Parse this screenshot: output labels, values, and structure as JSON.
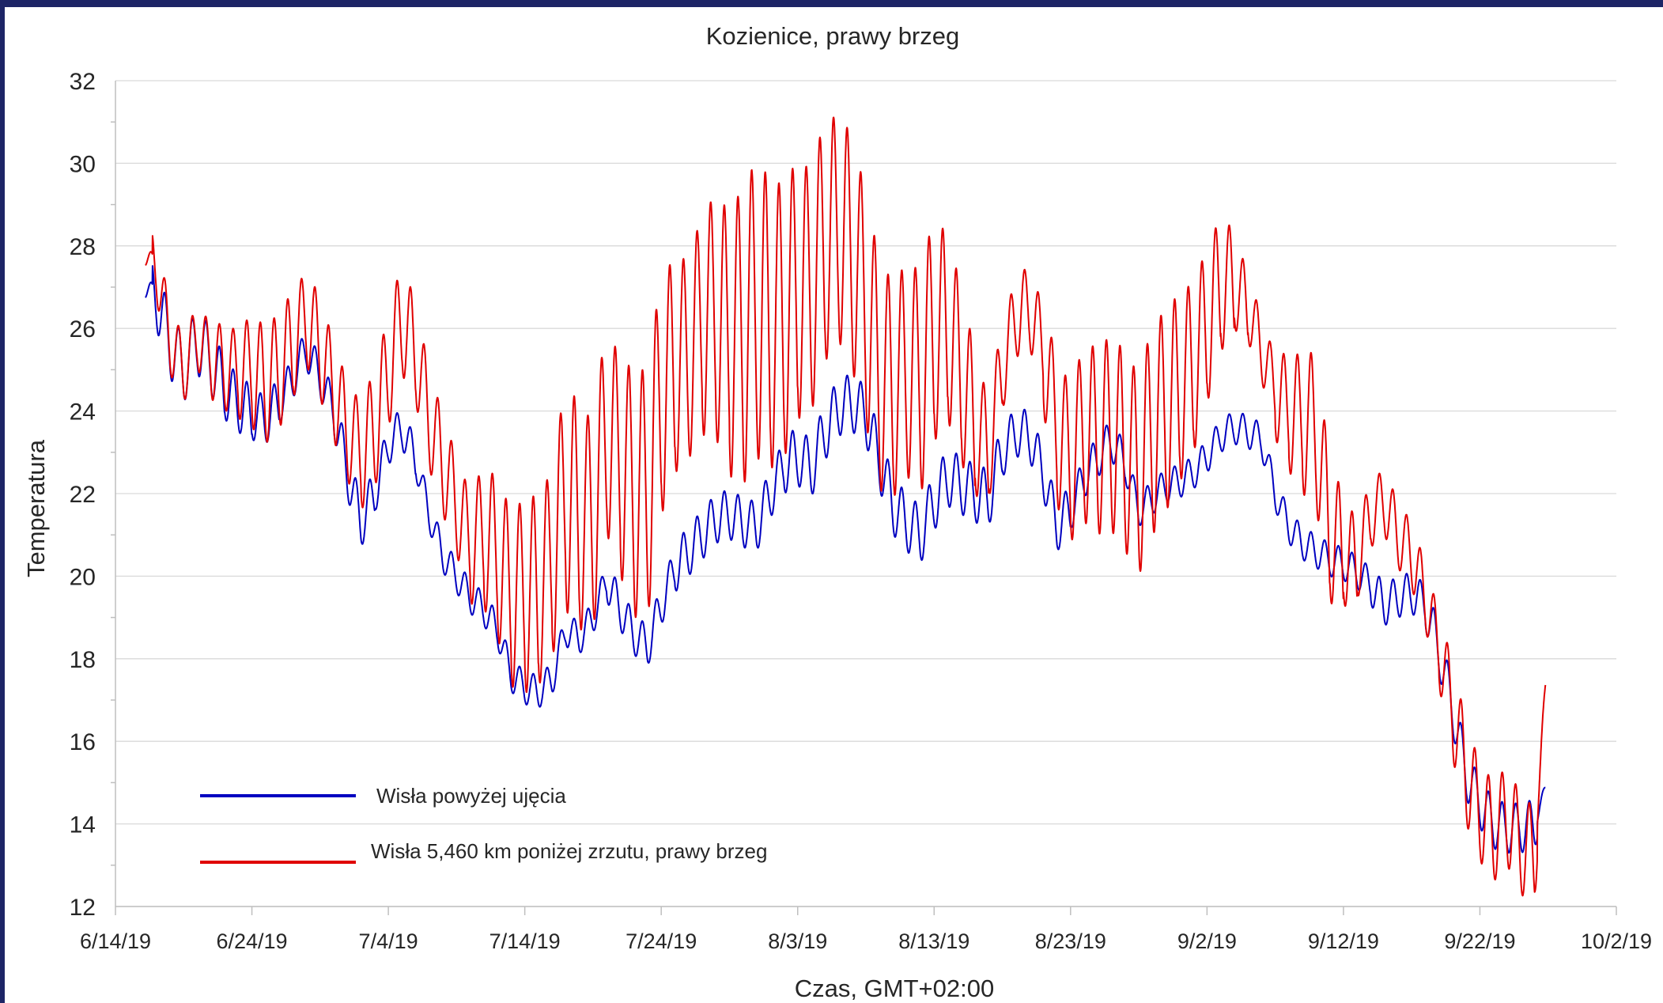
{
  "chart_data": {
    "type": "line",
    "title": "Kozienice, prawy  brzeg",
    "xlabel": "Czas, GMT+02:00",
    "ylabel": "Temperatura",
    "x_axis_type": "date",
    "xlim": [
      "2019-06-14",
      "2019-10-02"
    ],
    "x_tick_labels": [
      "6/14/19",
      "6/24/19",
      "7/4/19",
      "7/14/19",
      "7/24/19",
      "8/3/19",
      "8/13/19",
      "8/23/19",
      "9/2/19",
      "9/12/19",
      "9/22/19",
      "10/2/19"
    ],
    "ylim": [
      12,
      32
    ],
    "y_ticks": [
      12,
      14,
      16,
      18,
      20,
      22,
      24,
      26,
      28,
      30,
      32
    ],
    "grid": "horizontal",
    "legend_position": "bottom-left",
    "series": [
      {
        "name": "Wisła powyżej ujęcia",
        "color": "#0000c0",
        "diurnal_amplitude": [
          0.8,
          0.8,
          0.8,
          0.8,
          0.8,
          0.8,
          0.8,
          0.8,
          0.7,
          0.7,
          0.6,
          0.6,
          0.5,
          0.5,
          0.5,
          0.5,
          0.6,
          0.6,
          0.6,
          0.5,
          0.5,
          0.5,
          0.4,
          0.4,
          0.4,
          0.4,
          0.4,
          0.4,
          0.4,
          0.4,
          0.4,
          0.4,
          0.4,
          0.4,
          0.4,
          0.4,
          0.5,
          0.5,
          0.5,
          0.5,
          0.5,
          0.6,
          0.6,
          0.6,
          0.6,
          0.6,
          0.6,
          0.6,
          0.6,
          0.7,
          0.7,
          0.7,
          0.7,
          0.7,
          0.7,
          0.7,
          0.7,
          0.7,
          0.7,
          0.7,
          0.7,
          0.7,
          0.7,
          0.7,
          0.7,
          0.6,
          0.6,
          0.6,
          0.6,
          0.6,
          0.5,
          0.5,
          0.5,
          0.5,
          0.4,
          0.4,
          0.4,
          0.4,
          0.4,
          0.4,
          0.4,
          0.4,
          0.4,
          0.4,
          0.4,
          0.4,
          0.4,
          0.4,
          0.4,
          0.4,
          0.4,
          0.4,
          0.5,
          0.5,
          0.5,
          0.5,
          0.6,
          0.6,
          0.6,
          0.6
        ],
        "points": [
          [
            "2019-06-16",
            28.7
          ],
          [
            "2019-06-16",
            27.0
          ],
          [
            "2019-06-17",
            26.8
          ],
          [
            "2019-06-18",
            25.6
          ],
          [
            "2019-06-19",
            25.0
          ],
          [
            "2019-06-20",
            25.7
          ],
          [
            "2019-06-21",
            25.2
          ],
          [
            "2019-06-22",
            24.5
          ],
          [
            "2019-06-23",
            24.2
          ],
          [
            "2019-06-24",
            23.9
          ],
          [
            "2019-06-25",
            23.8
          ],
          [
            "2019-06-26",
            24.2
          ],
          [
            "2019-06-27",
            24.8
          ],
          [
            "2019-06-28",
            25.5
          ],
          [
            "2019-06-29",
            24.8
          ],
          [
            "2019-06-30",
            24.0
          ],
          [
            "2019-07-01",
            22.5
          ],
          [
            "2019-07-02",
            21.3
          ],
          [
            "2019-07-03",
            22.0
          ],
          [
            "2019-07-04",
            23.2
          ],
          [
            "2019-07-05",
            23.6
          ],
          [
            "2019-07-06",
            22.8
          ],
          [
            "2019-07-07",
            21.5
          ],
          [
            "2019-07-08",
            20.5
          ],
          [
            "2019-07-09",
            20.0
          ],
          [
            "2019-07-10",
            19.5
          ],
          [
            "2019-07-11",
            19.2
          ],
          [
            "2019-07-12",
            18.7
          ],
          [
            "2019-07-13",
            17.6
          ],
          [
            "2019-07-14",
            17.3
          ],
          [
            "2019-07-15",
            17.2
          ],
          [
            "2019-07-16",
            17.5
          ],
          [
            "2019-07-17",
            18.7
          ],
          [
            "2019-07-18",
            18.5
          ],
          [
            "2019-07-19",
            19.0
          ],
          [
            "2019-07-20",
            19.9
          ],
          [
            "2019-07-21",
            19.2
          ],
          [
            "2019-07-22",
            18.6
          ],
          [
            "2019-07-23",
            18.3
          ],
          [
            "2019-07-24",
            19.3
          ],
          [
            "2019-07-25",
            20.2
          ],
          [
            "2019-07-26",
            20.6
          ],
          [
            "2019-07-27",
            21.0
          ],
          [
            "2019-07-28",
            21.4
          ],
          [
            "2019-07-29",
            21.5
          ],
          [
            "2019-07-30",
            21.3
          ],
          [
            "2019-07-31",
            21.2
          ],
          [
            "2019-08-01",
            22.0
          ],
          [
            "2019-08-02",
            22.7
          ],
          [
            "2019-08-03",
            22.9
          ],
          [
            "2019-08-04",
            22.6
          ],
          [
            "2019-08-05",
            23.5
          ],
          [
            "2019-08-06",
            24.1
          ],
          [
            "2019-08-07",
            24.2
          ],
          [
            "2019-08-08",
            23.9
          ],
          [
            "2019-08-09",
            22.8
          ],
          [
            "2019-08-10",
            21.7
          ],
          [
            "2019-08-11",
            21.3
          ],
          [
            "2019-08-12",
            21.0
          ],
          [
            "2019-08-13",
            21.8
          ],
          [
            "2019-08-14",
            22.4
          ],
          [
            "2019-08-15",
            22.2
          ],
          [
            "2019-08-16",
            22.0
          ],
          [
            "2019-08-17",
            21.9
          ],
          [
            "2019-08-18",
            23.0
          ],
          [
            "2019-08-19",
            23.5
          ],
          [
            "2019-08-20",
            23.4
          ],
          [
            "2019-08-21",
            22.5
          ],
          [
            "2019-08-22",
            21.2
          ],
          [
            "2019-08-23",
            21.6
          ],
          [
            "2019-08-24",
            22.4
          ],
          [
            "2019-08-25",
            22.9
          ],
          [
            "2019-08-26",
            23.3
          ],
          [
            "2019-08-27",
            22.7
          ],
          [
            "2019-08-28",
            21.6
          ],
          [
            "2019-08-29",
            21.9
          ],
          [
            "2019-08-30",
            22.2
          ],
          [
            "2019-08-31",
            22.3
          ],
          [
            "2019-09-01",
            22.5
          ],
          [
            "2019-09-02",
            22.9
          ],
          [
            "2019-09-03",
            23.4
          ],
          [
            "2019-09-04",
            23.6
          ],
          [
            "2019-09-05",
            23.5
          ],
          [
            "2019-09-06",
            23.3
          ],
          [
            "2019-09-07",
            22.0
          ],
          [
            "2019-09-08",
            21.2
          ],
          [
            "2019-09-09",
            20.8
          ],
          [
            "2019-09-10",
            20.6
          ],
          [
            "2019-09-11",
            20.4
          ],
          [
            "2019-09-12",
            20.3
          ],
          [
            "2019-09-13",
            20.1
          ],
          [
            "2019-09-14",
            19.8
          ],
          [
            "2019-09-15",
            19.3
          ],
          [
            "2019-09-16",
            19.5
          ],
          [
            "2019-09-17",
            19.6
          ],
          [
            "2019-09-18",
            19.3
          ],
          [
            "2019-09-19",
            18.2
          ],
          [
            "2019-09-20",
            16.8
          ],
          [
            "2019-09-21",
            15.2
          ],
          [
            "2019-09-22",
            14.5
          ],
          [
            "2019-09-23",
            14.0
          ],
          [
            "2019-09-24",
            13.9
          ],
          [
            "2019-09-25",
            13.9
          ],
          [
            "2019-09-26",
            14.0
          ],
          [
            "2019-09-26",
            14.8
          ]
        ]
      },
      {
        "name": "Wisła 5,460 km poniżej zrzutu, prawy  brzeg",
        "color": "#e00000",
        "diurnal_amplitude": [
          0.8,
          0.8,
          0.8,
          0.8,
          0.8,
          0.8,
          0.8,
          1.0,
          1.0,
          1.2,
          1.4,
          1.4,
          1.4,
          1.2,
          1.2,
          1.2,
          1.2,
          1.2,
          1.4,
          1.4,
          1.4,
          1.3,
          1.2,
          1.2,
          1.2,
          1.2,
          1.5,
          1.8,
          2.0,
          2.2,
          2.4,
          2.2,
          2.5,
          2.8,
          2.6,
          2.6,
          2.5,
          2.8,
          3.0,
          3.0,
          2.8,
          2.5,
          2.5,
          2.8,
          3.0,
          3.4,
          3.6,
          3.6,
          3.4,
          3.3,
          3.0,
          3.0,
          2.8,
          2.8,
          2.8,
          2.8,
          2.7,
          2.6,
          2.6,
          2.8,
          2.5,
          2.2,
          2.0,
          1.5,
          1.2,
          1.0,
          1.0,
          1.0,
          1.5,
          1.8,
          2.0,
          2.2,
          2.3,
          2.4,
          2.4,
          2.5,
          2.5,
          2.4,
          2.2,
          2.0,
          1.8,
          1.5,
          1.0,
          0.8,
          0.8,
          1.2,
          1.5,
          1.8,
          1.8,
          1.6,
          1.2,
          0.9,
          0.8,
          0.8,
          0.8,
          0.8,
          0.8,
          1.0,
          1.2,
          1.2
        ],
        "points": [
          [
            "2019-06-16",
            28.7
          ],
          [
            "2019-06-16",
            27.8
          ],
          [
            "2019-06-17",
            27.5
          ],
          [
            "2019-06-18",
            25.7
          ],
          [
            "2019-06-19",
            25.0
          ],
          [
            "2019-06-20",
            25.8
          ],
          [
            "2019-06-21",
            25.3
          ],
          [
            "2019-06-22",
            25.0
          ],
          [
            "2019-06-23",
            25.0
          ],
          [
            "2019-06-24",
            25.0
          ],
          [
            "2019-06-25",
            24.6
          ],
          [
            "2019-06-26",
            25.0
          ],
          [
            "2019-06-27",
            25.5
          ],
          [
            "2019-06-28",
            26.3
          ],
          [
            "2019-06-29",
            25.5
          ],
          [
            "2019-06-30",
            24.5
          ],
          [
            "2019-07-01",
            23.5
          ],
          [
            "2019-07-02",
            23.0
          ],
          [
            "2019-07-03",
            23.5
          ],
          [
            "2019-07-04",
            25.0
          ],
          [
            "2019-07-05",
            26.2
          ],
          [
            "2019-07-06",
            25.4
          ],
          [
            "2019-07-07",
            23.8
          ],
          [
            "2019-07-08",
            22.7
          ],
          [
            "2019-07-09",
            21.7
          ],
          [
            "2019-07-10",
            20.8
          ],
          [
            "2019-07-11",
            21.0
          ],
          [
            "2019-07-12",
            20.5
          ],
          [
            "2019-07-13",
            19.5
          ],
          [
            "2019-07-14",
            19.6
          ],
          [
            "2019-07-15",
            19.5
          ],
          [
            "2019-07-16",
            20.5
          ],
          [
            "2019-07-17",
            22.0
          ],
          [
            "2019-07-18",
            21.3
          ],
          [
            "2019-07-19",
            21.3
          ],
          [
            "2019-07-20",
            23.5
          ],
          [
            "2019-07-21",
            22.8
          ],
          [
            "2019-07-22",
            22.0
          ],
          [
            "2019-07-23",
            22.0
          ],
          [
            "2019-07-24",
            24.3
          ],
          [
            "2019-07-25",
            25.0
          ],
          [
            "2019-07-26",
            25.3
          ],
          [
            "2019-07-27",
            26.2
          ],
          [
            "2019-07-28",
            26.3
          ],
          [
            "2019-07-29",
            25.8
          ],
          [
            "2019-07-30",
            25.8
          ],
          [
            "2019-07-31",
            26.5
          ],
          [
            "2019-08-01",
            26.0
          ],
          [
            "2019-08-02",
            26.2
          ],
          [
            "2019-08-03",
            26.8
          ],
          [
            "2019-08-04",
            27.0
          ],
          [
            "2019-08-05",
            28.0
          ],
          [
            "2019-08-06",
            28.5
          ],
          [
            "2019-08-07",
            27.8
          ],
          [
            "2019-08-08",
            26.5
          ],
          [
            "2019-08-09",
            24.8
          ],
          [
            "2019-08-10",
            24.5
          ],
          [
            "2019-08-11",
            25.0
          ],
          [
            "2019-08-12",
            24.8
          ],
          [
            "2019-08-13",
            25.8
          ],
          [
            "2019-08-14",
            26.0
          ],
          [
            "2019-08-15",
            24.8
          ],
          [
            "2019-08-16",
            23.5
          ],
          [
            "2019-08-17",
            23.0
          ],
          [
            "2019-08-18",
            25.0
          ],
          [
            "2019-08-19",
            26.3
          ],
          [
            "2019-08-20",
            26.5
          ],
          [
            "2019-08-21",
            25.5
          ],
          [
            "2019-08-22",
            23.5
          ],
          [
            "2019-08-23",
            22.8
          ],
          [
            "2019-08-24",
            23.5
          ],
          [
            "2019-08-25",
            23.3
          ],
          [
            "2019-08-26",
            23.5
          ],
          [
            "2019-08-27",
            23.0
          ],
          [
            "2019-08-28",
            22.5
          ],
          [
            "2019-08-29",
            23.5
          ],
          [
            "2019-08-30",
            24.0
          ],
          [
            "2019-08-31",
            24.5
          ],
          [
            "2019-09-01",
            25.0
          ],
          [
            "2019-09-02",
            26.0
          ],
          [
            "2019-09-03",
            27.0
          ],
          [
            "2019-09-04",
            27.0
          ],
          [
            "2019-09-05",
            26.5
          ],
          [
            "2019-09-06",
            25.5
          ],
          [
            "2019-09-07",
            24.5
          ],
          [
            "2019-09-08",
            24.0
          ],
          [
            "2019-09-09",
            23.8
          ],
          [
            "2019-09-10",
            23.5
          ],
          [
            "2019-09-11",
            21.0
          ],
          [
            "2019-09-12",
            20.5
          ],
          [
            "2019-09-13",
            20.3
          ],
          [
            "2019-09-14",
            21.5
          ],
          [
            "2019-09-15",
            21.8
          ],
          [
            "2019-09-16",
            21.0
          ],
          [
            "2019-09-17",
            20.5
          ],
          [
            "2019-09-18",
            19.5
          ],
          [
            "2019-09-19",
            18.3
          ],
          [
            "2019-09-20",
            16.8
          ],
          [
            "2019-09-21",
            15.2
          ],
          [
            "2019-09-22",
            14.3
          ],
          [
            "2019-09-23",
            13.8
          ],
          [
            "2019-09-24",
            14.2
          ],
          [
            "2019-09-25",
            13.5
          ],
          [
            "2019-09-26",
            13.2
          ],
          [
            "2019-09-26",
            17.2
          ]
        ]
      }
    ]
  }
}
